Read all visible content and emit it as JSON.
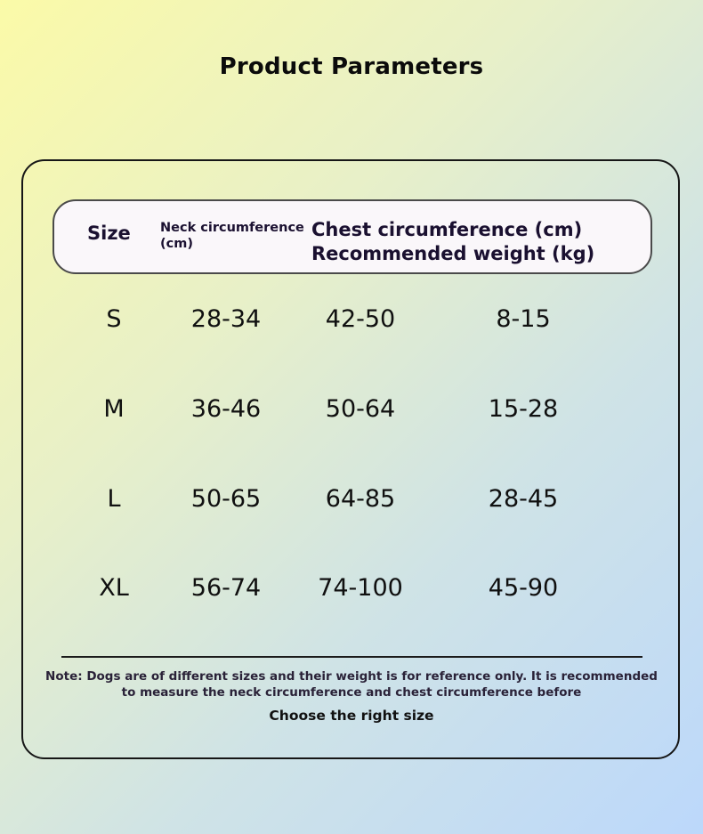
{
  "title": "Product Parameters",
  "table": {
    "headers": {
      "size": "Size",
      "neck": "Neck circumference (cm)",
      "chest": "Chest circumference (cm)",
      "weight": "Recommended weight (kg)"
    },
    "rows": [
      {
        "size": "S",
        "neck": "28-34",
        "chest": "42-50",
        "weight": "8-15"
      },
      {
        "size": "M",
        "neck": "36-46",
        "chest": "50-64",
        "weight": "15-28"
      },
      {
        "size": "L",
        "neck": "50-65",
        "chest": "64-85",
        "weight": "28-45"
      },
      {
        "size": "XL",
        "neck": "56-74",
        "chest": "74-100",
        "weight": "45-90"
      }
    ]
  },
  "note": "Note: Dogs are of different sizes and their weight is for reference only. It is recommended to measure the neck circumference and chest circumference before",
  "note_end": "Choose the right size"
}
